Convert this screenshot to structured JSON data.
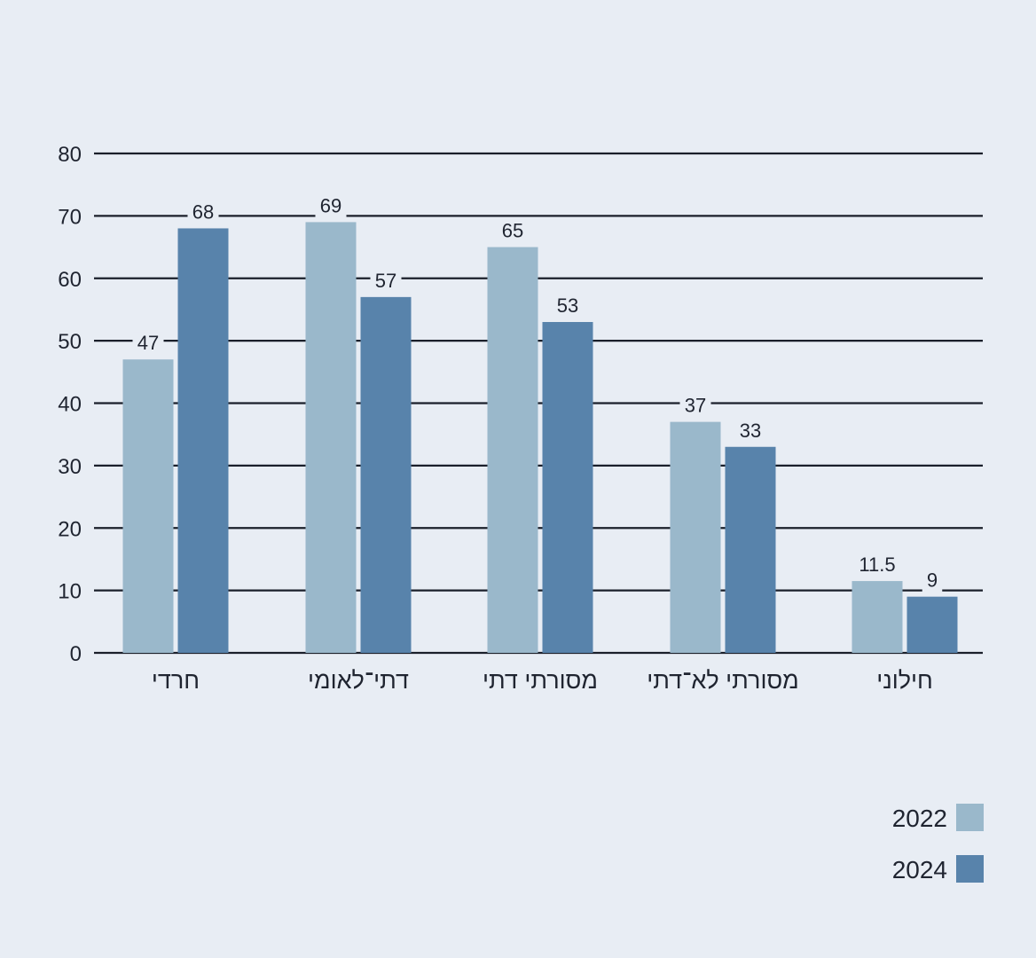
{
  "colors": {
    "background": "#e8edf4",
    "series_2022": "#9ab8cb",
    "series_2024": "#5883ab",
    "gridline": "#1a1f2a",
    "text": "#1f2430"
  },
  "chart_data": {
    "type": "bar",
    "title": "",
    "xlabel": "",
    "ylabel": "",
    "ylim": [
      0,
      80
    ],
    "yticks": [
      0,
      10,
      20,
      30,
      40,
      50,
      60,
      70,
      80
    ],
    "grid": true,
    "legend_position": "bottom-right",
    "categories": [
      "חרדי",
      "דתי־לאומי",
      "מסורתי דתי",
      "מסורתי לא־דתי",
      "חילוני"
    ],
    "series": [
      {
        "name": "2022",
        "values": [
          47,
          69,
          65,
          37,
          11.5
        ],
        "labels": [
          "47",
          "69",
          "65",
          "37",
          "11.5"
        ]
      },
      {
        "name": "2024",
        "values": [
          68,
          57,
          53,
          33,
          9
        ],
        "labels": [
          "68",
          "57",
          "53",
          "33",
          "9"
        ]
      }
    ]
  }
}
